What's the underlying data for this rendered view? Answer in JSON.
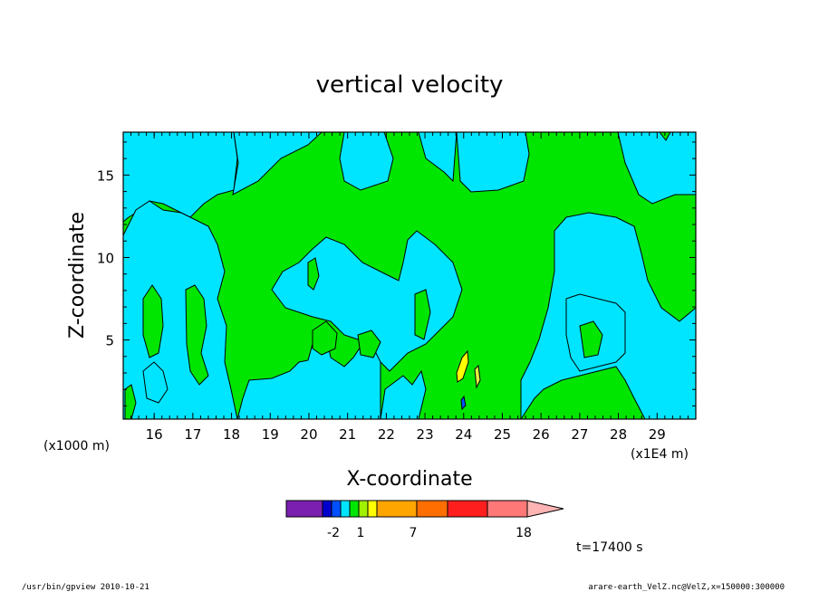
{
  "chart_data": {
    "type": "heatmap",
    "title": "vertical velocity",
    "xlabel": "X-coordinate",
    "ylabel": "Z-coordinate",
    "x_scale_note": "(x1E4 m)",
    "y_scale_note": "(x1000 m)",
    "xlim": [
      15.2,
      30.0
    ],
    "ylim": [
      0.2,
      17.6
    ],
    "x_ticks": [
      16,
      17,
      18,
      19,
      20,
      21,
      22,
      23,
      24,
      25,
      26,
      27,
      28,
      29
    ],
    "y_ticks": [
      5,
      10,
      15
    ],
    "colorbar": {
      "levels": [
        -4,
        -3,
        -2,
        -1,
        0,
        1,
        2,
        3,
        7,
        11,
        14,
        18
      ],
      "tick_labels": [
        "-2",
        "1",
        "7",
        "18"
      ],
      "colors": [
        "#7a1fb0",
        "#0000cd",
        "#0050ff",
        "#00e5ff",
        "#00e600",
        "#a0f000",
        "#ffff00",
        "#ffa500",
        "#ff6e00",
        "#ff1e1e",
        "#ff7878",
        "#ffb4b4"
      ]
    },
    "regions": {
      "background_color": "#00e600",
      "cyan_color": "#00e5ff",
      "yellow_color": "#ffff00",
      "blue_color": "#0050ff"
    },
    "time_label": "t=17400 s"
  },
  "footer": {
    "left": "/usr/bin/gpview  2010-10-21",
    "right": "arare-earth_VelZ.nc@VelZ,x=150000:300000"
  }
}
